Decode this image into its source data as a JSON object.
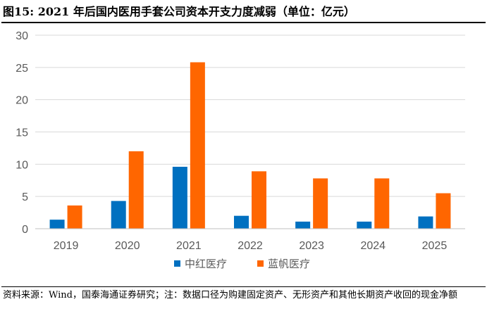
{
  "header": {
    "title": "图15:  2021 年后国内医用手套公司资本开支力度减弱（单位：亿元）"
  },
  "footer": {
    "note": "资料来源：Wind，国泰海通证券研究；注：数据口径为购建固定资产、无形资产和其他长期资产收回的现金净额"
  },
  "chart_data": {
    "type": "bar",
    "categories": [
      "2019",
      "2020",
      "2021",
      "2022",
      "2023",
      "2024",
      "2025"
    ],
    "series": [
      {
        "name": "中红医疗",
        "color": "#0070C0",
        "values": [
          1.4,
          4.3,
          9.6,
          2.0,
          1.1,
          1.1,
          1.9
        ]
      },
      {
        "name": "蓝帆医疗",
        "color": "#FF6600",
        "values": [
          3.6,
          12.0,
          25.8,
          8.9,
          7.8,
          7.8,
          5.5
        ]
      }
    ],
    "title": "",
    "xlabel": "",
    "ylabel": "",
    "ylim": [
      0,
      30
    ],
    "yticks": [
      0,
      5,
      10,
      15,
      20,
      25,
      30
    ],
    "grid": true,
    "legend_position": "bottom"
  }
}
